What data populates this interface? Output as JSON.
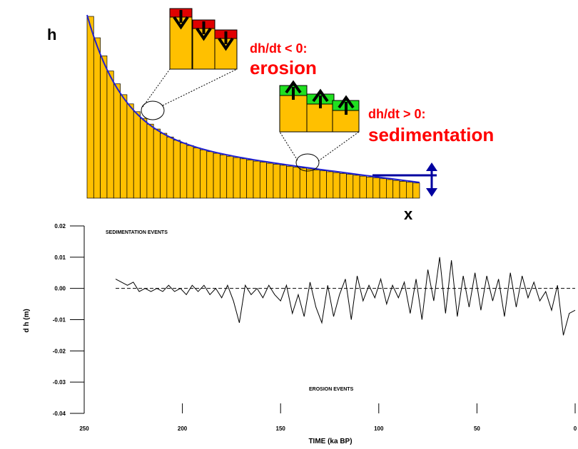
{
  "diagram": {
    "y_label": "h",
    "x_label": "x",
    "erosion_condition": "dh/dt < 0:",
    "erosion": "erosion",
    "sedimentation_condition": "dh/dt > 0:",
    "sedimentation": "sedimentation"
  },
  "chart_data": {
    "type": "line",
    "x_label": "TIME (ka BP)",
    "y_label": "d h  (m)",
    "annotations": [
      "SEDIMENTATION EVENTS",
      "EROSION EVENTS"
    ],
    "color": "#000000",
    "x": [
      234,
      231,
      228,
      225,
      222,
      219,
      216,
      213,
      210,
      207,
      204,
      201,
      198,
      195,
      192,
      189,
      186,
      183,
      180,
      177,
      174,
      171,
      168,
      165,
      162,
      159,
      156,
      153,
      150,
      147,
      144,
      141,
      138,
      135,
      132,
      129,
      126,
      123,
      120,
      117,
      114,
      111,
      108,
      105,
      102,
      99,
      96,
      93,
      90,
      87,
      84,
      81,
      78,
      75,
      72,
      69,
      66,
      63,
      60,
      57,
      54,
      51,
      48,
      45,
      42,
      39,
      36,
      33,
      30,
      27,
      24,
      21,
      18,
      15,
      12,
      9,
      6,
      3,
      0
    ],
    "values": [
      0.003,
      0.002,
      0.001,
      0.002,
      -0.001,
      0.0,
      -0.001,
      0.0,
      -0.001,
      0.001,
      -0.001,
      0.0,
      -0.002,
      0.001,
      -0.001,
      0.001,
      -0.002,
      0.0,
      -0.003,
      0.001,
      -0.004,
      -0.011,
      0.001,
      -0.002,
      0.0,
      -0.003,
      0.001,
      -0.002,
      -0.004,
      0.001,
      -0.008,
      -0.002,
      -0.009,
      0.002,
      -0.006,
      -0.011,
      0.001,
      -0.009,
      -0.002,
      0.003,
      -0.01,
      0.004,
      -0.004,
      0.001,
      -0.003,
      0.003,
      -0.005,
      0.001,
      -0.003,
      0.002,
      -0.008,
      0.003,
      -0.01,
      0.006,
      -0.004,
      0.01,
      -0.008,
      0.009,
      -0.009,
      0.004,
      -0.006,
      0.005,
      -0.007,
      0.004,
      -0.004,
      0.003,
      -0.009,
      0.005,
      -0.006,
      0.004,
      -0.003,
      0.002,
      -0.004,
      -0.001,
      -0.007,
      0.001,
      -0.015,
      -0.008,
      -0.007
    ],
    "reference_y": 0,
    "xlim": [
      250,
      0
    ],
    "xticks": [
      250,
      200,
      150,
      100,
      50,
      0
    ],
    "ylim": [
      -0.04,
      0.02
    ],
    "yticks": [
      0.02,
      0.01,
      {
        "value": 0,
        "label": "0.00"
      },
      -0.01,
      -0.02,
      -0.03,
      -0.04
    ]
  }
}
